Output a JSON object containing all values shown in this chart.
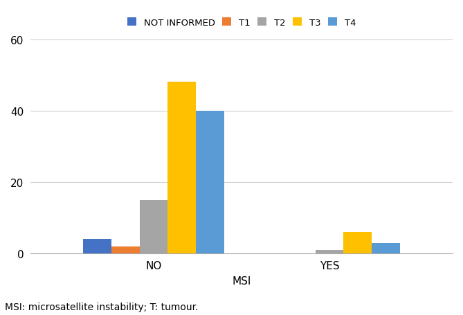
{
  "categories": [
    "NO",
    "YES"
  ],
  "series": [
    {
      "label": "NOT INFORMED",
      "color": "#4472C4",
      "values": [
        4,
        0
      ]
    },
    {
      "label": "T1",
      "color": "#ED7D31",
      "values": [
        2,
        0
      ]
    },
    {
      "label": "T2",
      "color": "#A5A5A5",
      "values": [
        15,
        1
      ]
    },
    {
      "label": "T3",
      "color": "#FFC000",
      "values": [
        48,
        6
      ]
    },
    {
      "label": "T4",
      "color": "#5B9BD5",
      "values": [
        40,
        3
      ]
    }
  ],
  "xlabel": "MSI",
  "ylabel": "",
  "ylim": [
    0,
    60
  ],
  "yticks": [
    0,
    20,
    40,
    60
  ],
  "background_color": "#FFFFFF",
  "caption": "MSI: microsatellite instability; T: tumour.",
  "bar_width": 0.08,
  "group_centers": [
    0.35,
    0.85
  ]
}
